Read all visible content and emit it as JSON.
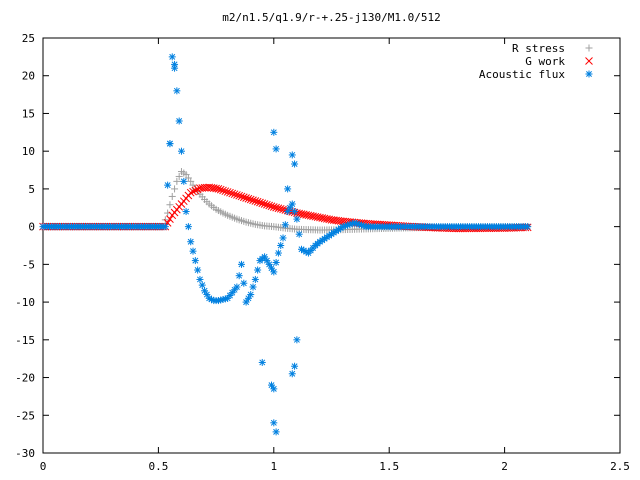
{
  "chart_data": {
    "type": "scatter",
    "title": "m2/n1.5/q1.9/r-+.25-j130/M1.0/512",
    "xlabel": "",
    "ylabel": "",
    "xlim": [
      0,
      2.5
    ],
    "ylim": [
      -30,
      25
    ],
    "xticks": [
      "0",
      "0.5",
      "1",
      "1.5",
      "2",
      "2.5"
    ],
    "yticks": [
      "25",
      "20",
      "15",
      "10",
      "5",
      "0",
      "-5",
      "-10",
      "-15",
      "-20",
      "-25",
      "-30"
    ],
    "grid": false,
    "legend_position": "top-right",
    "series": [
      {
        "name": "R stress",
        "marker": "plus",
        "color": "#a0a0a0",
        "x": [
          0.0,
          0.52,
          0.54,
          0.56,
          0.58,
          0.6,
          0.62,
          0.64,
          0.66,
          0.68,
          0.7,
          0.72,
          0.75,
          0.78,
          0.8,
          0.84,
          0.88,
          0.92,
          0.96,
          1.0,
          1.05,
          1.1,
          1.15,
          1.2,
          1.3,
          1.4,
          1.6,
          1.8,
          2.1
        ],
        "y": [
          0.0,
          0.0,
          1.8,
          4.0,
          6.0,
          7.3,
          6.9,
          6.0,
          5.0,
          4.3,
          3.6,
          3.0,
          2.3,
          1.8,
          1.5,
          1.0,
          0.6,
          0.3,
          0.1,
          0.0,
          -0.2,
          -0.35,
          -0.4,
          -0.45,
          -0.4,
          -0.3,
          -0.15,
          -0.05,
          0.0
        ]
      },
      {
        "name": "G work",
        "marker": "cross",
        "color": "#ff0000",
        "x": [
          0.0,
          0.53,
          0.56,
          0.6,
          0.64,
          0.68,
          0.72,
          0.76,
          0.8,
          0.85,
          0.9,
          0.95,
          1.0,
          1.05,
          1.1,
          1.15,
          1.2,
          1.25,
          1.3,
          1.35,
          1.4,
          1.5,
          1.6,
          1.7,
          1.8,
          2.0,
          2.1
        ],
        "y": [
          0.0,
          0.0,
          1.5,
          3.0,
          4.5,
          5.1,
          5.2,
          5.0,
          4.6,
          4.1,
          3.6,
          3.1,
          2.6,
          2.2,
          1.8,
          1.5,
          1.2,
          0.9,
          0.7,
          0.55,
          0.4,
          0.2,
          0.0,
          -0.15,
          -0.25,
          -0.2,
          -0.1
        ]
      },
      {
        "name": "Acoustic flux",
        "marker": "star",
        "color": "#0080e0",
        "x": [
          0.0,
          0.53,
          0.55,
          0.56,
          0.57,
          0.58,
          0.59,
          0.6,
          0.61,
          0.62,
          0.64,
          0.66,
          0.68,
          0.7,
          0.72,
          0.74,
          0.76,
          0.8,
          0.84,
          0.86,
          0.88,
          0.9,
          0.92,
          0.94,
          0.96,
          0.98,
          1.0,
          1.02,
          1.04,
          1.06,
          1.08,
          1.1,
          1.12,
          1.15,
          1.18,
          1.2,
          1.25,
          1.3,
          1.35,
          1.4,
          1.5,
          1.6,
          1.8,
          2.1,
          1.0,
          1.01,
          1.06,
          1.08,
          1.09,
          1.0,
          1.01,
          1.08,
          1.09,
          1.1,
          0.95,
          0.55,
          0.57,
          0.99,
          1.0
        ],
        "y": [
          0.0,
          0.0,
          11.0,
          22.5,
          21.5,
          18.0,
          14.0,
          10.0,
          6.0,
          2.0,
          -2.0,
          -4.5,
          -7.0,
          -8.5,
          -9.5,
          -9.8,
          -9.8,
          -9.5,
          -8.0,
          -5.0,
          -10.0,
          -9.0,
          -7.0,
          -4.5,
          -4.0,
          -5.0,
          -6.0,
          -3.5,
          -1.5,
          2.0,
          3.0,
          1.0,
          -3.0,
          -3.5,
          -2.5,
          -2.0,
          -1.0,
          0.0,
          0.5,
          0.0,
          0.0,
          0.0,
          0.0,
          0.0,
          12.5,
          10.3,
          5.0,
          9.5,
          8.3,
          -26.0,
          -27.2,
          -19.5,
          -18.5,
          -15.0,
          -18.0,
          11.0,
          21.0,
          -21.0,
          -21.5
        ]
      }
    ]
  }
}
